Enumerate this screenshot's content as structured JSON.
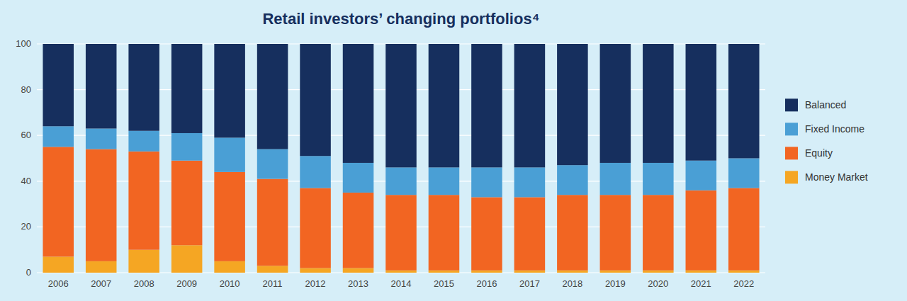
{
  "chart_data": {
    "type": "bar",
    "stacked": true,
    "title": "Retail investors’ changing portfolios⁴",
    "categories": [
      "2006",
      "2007",
      "2008",
      "2009",
      "2010",
      "2011",
      "2012",
      "2013",
      "2014",
      "2015",
      "2016",
      "2017",
      "2018",
      "2019",
      "2020",
      "2021",
      "2022"
    ],
    "series": [
      {
        "name": "Money Market",
        "color": "#F5A623",
        "values": [
          7,
          5,
          10,
          12,
          5,
          3,
          2,
          2,
          1,
          1,
          1,
          1,
          1,
          1,
          1,
          1,
          1
        ]
      },
      {
        "name": "Equity",
        "color": "#F26522",
        "values": [
          48,
          49,
          43,
          37,
          39,
          38,
          35,
          33,
          33,
          33,
          32,
          32,
          33,
          33,
          33,
          35,
          36
        ]
      },
      {
        "name": "Fixed Income",
        "color": "#4A9FD5",
        "values": [
          9,
          9,
          9,
          12,
          15,
          13,
          14,
          13,
          12,
          12,
          13,
          13,
          13,
          14,
          14,
          13,
          13
        ]
      },
      {
        "name": "Balanced",
        "color": "#162F5E",
        "values": [
          36,
          37,
          38,
          39,
          41,
          46,
          49,
          52,
          54,
          54,
          54,
          54,
          53,
          52,
          52,
          51,
          50
        ]
      }
    ],
    "ylim": [
      0,
      100
    ],
    "yticks": [
      0,
      20,
      40,
      60,
      80,
      100
    ],
    "grid": true,
    "legend": "right"
  }
}
